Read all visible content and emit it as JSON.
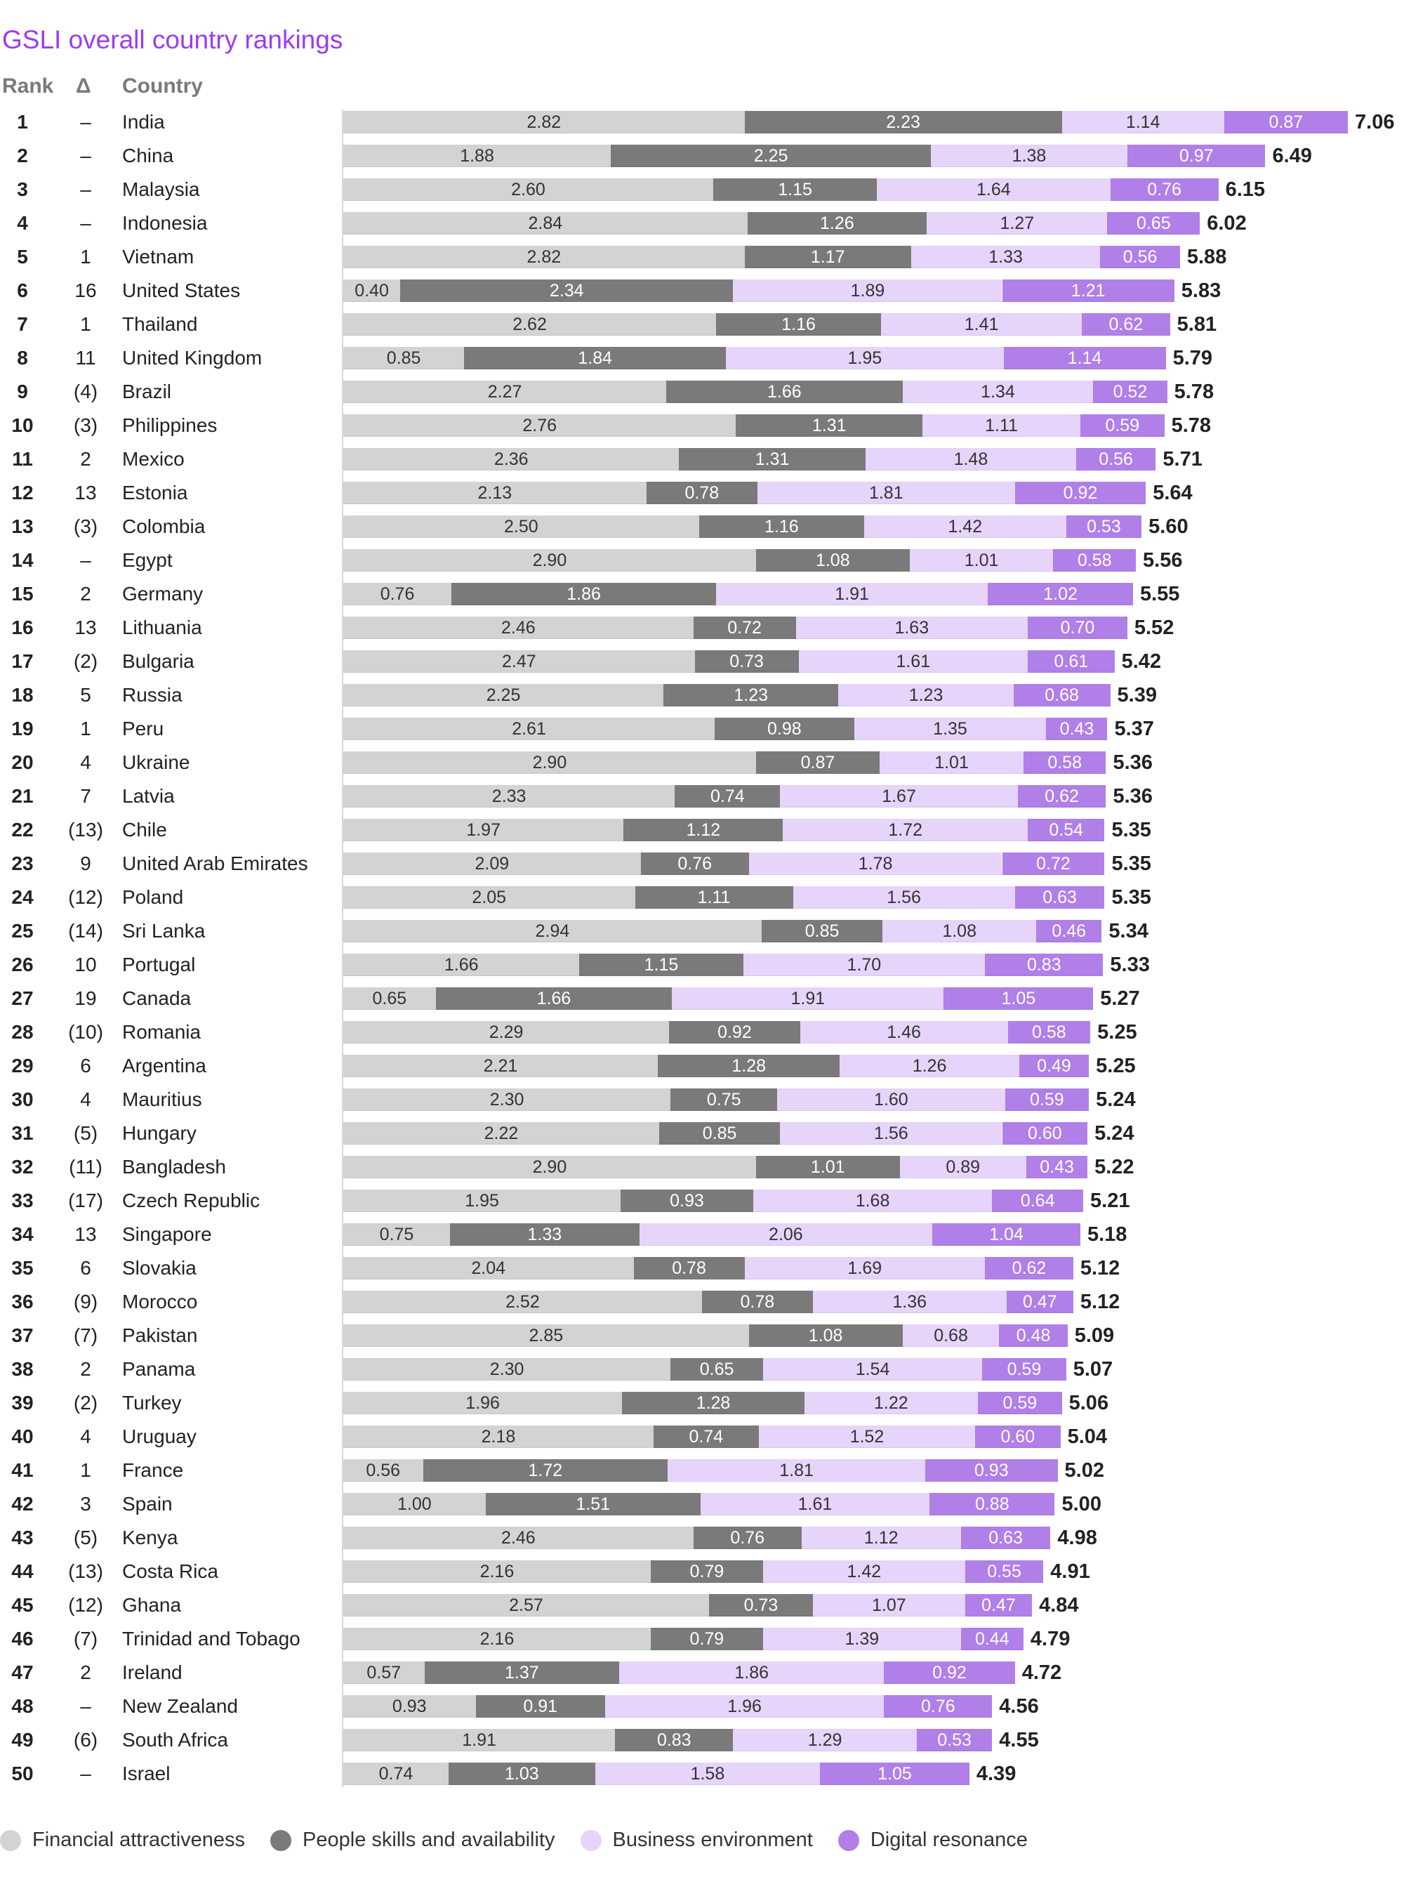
{
  "chart_data": {
    "type": "bar",
    "orientation": "horizontal",
    "stacked": true,
    "title": "GSLI overall country rankings",
    "columns": {
      "rank": "Rank",
      "delta": "Δ",
      "country": "Country"
    },
    "series": [
      {
        "name": "Financial attractiveness",
        "color": "#d3d3d3"
      },
      {
        "name": "People skills and availability",
        "color": "#7a7a7a"
      },
      {
        "name": "Business environment",
        "color": "#e6d4fa"
      },
      {
        "name": "Digital resonance",
        "color": "#b07fe8"
      }
    ],
    "legend_position": "bottom-left",
    "rows": [
      {
        "rank": "1",
        "delta": "–",
        "country": "India",
        "values": [
          "2.82",
          "2.23",
          "1.14",
          "0.87"
        ],
        "total": "7.06"
      },
      {
        "rank": "2",
        "delta": "–",
        "country": "China",
        "values": [
          "1.88",
          "2.25",
          "1.38",
          "0.97"
        ],
        "total": "6.49"
      },
      {
        "rank": "3",
        "delta": "–",
        "country": "Malaysia",
        "values": [
          "2.60",
          "1.15",
          "1.64",
          "0.76"
        ],
        "total": "6.15"
      },
      {
        "rank": "4",
        "delta": "–",
        "country": "Indonesia",
        "values": [
          "2.84",
          "1.26",
          "1.27",
          "0.65"
        ],
        "total": "6.02"
      },
      {
        "rank": "5",
        "delta": "1",
        "country": "Vietnam",
        "values": [
          "2.82",
          "1.17",
          "1.33",
          "0.56"
        ],
        "total": "5.88"
      },
      {
        "rank": "6",
        "delta": "16",
        "country": "United States",
        "values": [
          "0.40",
          "2.34",
          "1.89",
          "1.21"
        ],
        "total": "5.83"
      },
      {
        "rank": "7",
        "delta": "1",
        "country": "Thailand",
        "values": [
          "2.62",
          "1.16",
          "1.41",
          "0.62"
        ],
        "total": "5.81"
      },
      {
        "rank": "8",
        "delta": "11",
        "country": "United Kingdom",
        "values": [
          "0.85",
          "1.84",
          "1.95",
          "1.14"
        ],
        "total": "5.79"
      },
      {
        "rank": "9",
        "delta": "(4)",
        "country": "Brazil",
        "values": [
          "2.27",
          "1.66",
          "1.34",
          "0.52"
        ],
        "total": "5.78"
      },
      {
        "rank": "10",
        "delta": "(3)",
        "country": "Philippines",
        "values": [
          "2.76",
          "1.31",
          "1.11",
          "0.59"
        ],
        "total": "5.78"
      },
      {
        "rank": "11",
        "delta": "2",
        "country": "Mexico",
        "values": [
          "2.36",
          "1.31",
          "1.48",
          "0.56"
        ],
        "total": "5.71"
      },
      {
        "rank": "12",
        "delta": "13",
        "country": "Estonia",
        "values": [
          "2.13",
          "0.78",
          "1.81",
          "0.92"
        ],
        "total": "5.64"
      },
      {
        "rank": "13",
        "delta": "(3)",
        "country": "Colombia",
        "values": [
          "2.50",
          "1.16",
          "1.42",
          "0.53"
        ],
        "total": "5.60"
      },
      {
        "rank": "14",
        "delta": "–",
        "country": "Egypt",
        "values": [
          "2.90",
          "1.08",
          "1.01",
          "0.58"
        ],
        "total": "5.56"
      },
      {
        "rank": "15",
        "delta": "2",
        "country": "Germany",
        "values": [
          "0.76",
          "1.86",
          "1.91",
          "1.02"
        ],
        "total": "5.55"
      },
      {
        "rank": "16",
        "delta": "13",
        "country": "Lithuania",
        "values": [
          "2.46",
          "0.72",
          "1.63",
          "0.70"
        ],
        "total": "5.52"
      },
      {
        "rank": "17",
        "delta": "(2)",
        "country": "Bulgaria",
        "values": [
          "2.47",
          "0.73",
          "1.61",
          "0.61"
        ],
        "total": "5.42"
      },
      {
        "rank": "18",
        "delta": "5",
        "country": "Russia",
        "values": [
          "2.25",
          "1.23",
          "1.23",
          "0.68"
        ],
        "total": "5.39"
      },
      {
        "rank": "19",
        "delta": "1",
        "country": "Peru",
        "values": [
          "2.61",
          "0.98",
          "1.35",
          "0.43"
        ],
        "total": "5.37"
      },
      {
        "rank": "20",
        "delta": "4",
        "country": "Ukraine",
        "values": [
          "2.90",
          "0.87",
          "1.01",
          "0.58"
        ],
        "total": "5.36"
      },
      {
        "rank": "21",
        "delta": "7",
        "country": "Latvia",
        "values": [
          "2.33",
          "0.74",
          "1.67",
          "0.62"
        ],
        "total": "5.36"
      },
      {
        "rank": "22",
        "delta": "(13)",
        "country": "Chile",
        "values": [
          "1.97",
          "1.12",
          "1.72",
          "0.54"
        ],
        "total": "5.35"
      },
      {
        "rank": "23",
        "delta": "9",
        "country": "United Arab Emirates",
        "values": [
          "2.09",
          "0.76",
          "1.78",
          "0.72"
        ],
        "total": "5.35"
      },
      {
        "rank": "24",
        "delta": "(12)",
        "country": "Poland",
        "values": [
          "2.05",
          "1.11",
          "1.56",
          "0.63"
        ],
        "total": "5.35"
      },
      {
        "rank": "25",
        "delta": "(14)",
        "country": "Sri Lanka",
        "values": [
          "2.94",
          "0.85",
          "1.08",
          "0.46"
        ],
        "total": "5.34"
      },
      {
        "rank": "26",
        "delta": "10",
        "country": "Portugal",
        "values": [
          "1.66",
          "1.15",
          "1.70",
          "0.83"
        ],
        "total": "5.33"
      },
      {
        "rank": "27",
        "delta": "19",
        "country": "Canada",
        "values": [
          "0.65",
          "1.66",
          "1.91",
          "1.05"
        ],
        "total": "5.27"
      },
      {
        "rank": "28",
        "delta": "(10)",
        "country": "Romania",
        "values": [
          "2.29",
          "0.92",
          "1.46",
          "0.58"
        ],
        "total": "5.25"
      },
      {
        "rank": "29",
        "delta": "6",
        "country": "Argentina",
        "values": [
          "2.21",
          "1.28",
          "1.26",
          "0.49"
        ],
        "total": "5.25"
      },
      {
        "rank": "30",
        "delta": "4",
        "country": "Mauritius",
        "values": [
          "2.30",
          "0.75",
          "1.60",
          "0.59"
        ],
        "total": "5.24"
      },
      {
        "rank": "31",
        "delta": "(5)",
        "country": "Hungary",
        "values": [
          "2.22",
          "0.85",
          "1.56",
          "0.60"
        ],
        "total": "5.24"
      },
      {
        "rank": "32",
        "delta": "(11)",
        "country": "Bangladesh",
        "values": [
          "2.90",
          "1.01",
          "0.89",
          "0.43"
        ],
        "total": "5.22"
      },
      {
        "rank": "33",
        "delta": "(17)",
        "country": "Czech Republic",
        "values": [
          "1.95",
          "0.93",
          "1.68",
          "0.64"
        ],
        "total": "5.21"
      },
      {
        "rank": "34",
        "delta": "13",
        "country": "Singapore",
        "values": [
          "0.75",
          "1.33",
          "2.06",
          "1.04"
        ],
        "total": "5.18"
      },
      {
        "rank": "35",
        "delta": "6",
        "country": "Slovakia",
        "values": [
          "2.04",
          "0.78",
          "1.69",
          "0.62"
        ],
        "total": "5.12"
      },
      {
        "rank": "36",
        "delta": "(9)",
        "country": "Morocco",
        "values": [
          "2.52",
          "0.78",
          "1.36",
          "0.47"
        ],
        "total": "5.12"
      },
      {
        "rank": "37",
        "delta": "(7)",
        "country": "Pakistan",
        "values": [
          "2.85",
          "1.08",
          "0.68",
          "0.48"
        ],
        "total": "5.09"
      },
      {
        "rank": "38",
        "delta": "2",
        "country": "Panama",
        "values": [
          "2.30",
          "0.65",
          "1.54",
          "0.59"
        ],
        "total": "5.07"
      },
      {
        "rank": "39",
        "delta": "(2)",
        "country": "Turkey",
        "values": [
          "1.96",
          "1.28",
          "1.22",
          "0.59"
        ],
        "total": "5.06"
      },
      {
        "rank": "40",
        "delta": "4",
        "country": "Uruguay",
        "values": [
          "2.18",
          "0.74",
          "1.52",
          "0.60"
        ],
        "total": "5.04"
      },
      {
        "rank": "41",
        "delta": "1",
        "country": "France",
        "values": [
          "0.56",
          "1.72",
          "1.81",
          "0.93"
        ],
        "total": "5.02"
      },
      {
        "rank": "42",
        "delta": "3",
        "country": "Spain",
        "values": [
          "1.00",
          "1.51",
          "1.61",
          "0.88"
        ],
        "total": "5.00"
      },
      {
        "rank": "43",
        "delta": "(5)",
        "country": "Kenya",
        "values": [
          "2.46",
          "0.76",
          "1.12",
          "0.63"
        ],
        "total": "4.98"
      },
      {
        "rank": "44",
        "delta": "(13)",
        "country": "Costa Rica",
        "values": [
          "2.16",
          "0.79",
          "1.42",
          "0.55"
        ],
        "total": "4.91"
      },
      {
        "rank": "45",
        "delta": "(12)",
        "country": "Ghana",
        "values": [
          "2.57",
          "0.73",
          "1.07",
          "0.47"
        ],
        "total": "4.84"
      },
      {
        "rank": "46",
        "delta": "(7)",
        "country": "Trinidad and Tobago",
        "values": [
          "2.16",
          "0.79",
          "1.39",
          "0.44"
        ],
        "total": "4.79"
      },
      {
        "rank": "47",
        "delta": "2",
        "country": "Ireland",
        "values": [
          "0.57",
          "1.37",
          "1.86",
          "0.92"
        ],
        "total": "4.72"
      },
      {
        "rank": "48",
        "delta": "–",
        "country": "New Zealand",
        "values": [
          "0.93",
          "0.91",
          "1.96",
          "0.76"
        ],
        "total": "4.56"
      },
      {
        "rank": "49",
        "delta": "(6)",
        "country": "South Africa",
        "values": [
          "1.91",
          "0.83",
          "1.29",
          "0.53"
        ],
        "total": "4.55"
      },
      {
        "rank": "50",
        "delta": "–",
        "country": "Israel",
        "values": [
          "0.74",
          "1.03",
          "1.58",
          "1.05"
        ],
        "total": "4.39"
      }
    ]
  }
}
